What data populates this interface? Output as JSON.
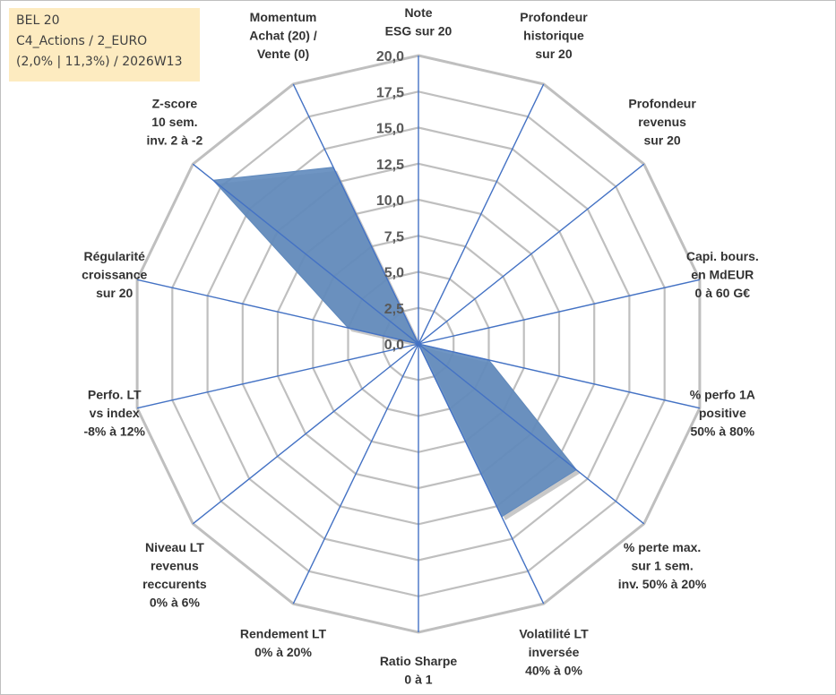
{
  "info_box": {
    "line1": "BEL 20",
    "line2": "C4_Actions / 2_EURO",
    "line3": "(2,0% | 11,3%) / 2026W13"
  },
  "chart_data": {
    "type": "radar",
    "title": "",
    "range": [
      0,
      20
    ],
    "ticks": [
      "0,0",
      "2,5",
      "5,0",
      "7,5",
      "10,0",
      "12,5",
      "15,0",
      "17,5",
      "20,0"
    ],
    "axes": [
      {
        "label": [
          "Note",
          "ESG sur 20"
        ],
        "value": 0
      },
      {
        "label": [
          "Profondeur",
          "historique",
          "sur 20"
        ],
        "value": 0
      },
      {
        "label": [
          "Profondeur",
          "revenus",
          "sur 20"
        ],
        "value": 0
      },
      {
        "label": [
          "Capi. bours.",
          "en MdEUR",
          "0 à 60 G€"
        ],
        "value": 0
      },
      {
        "label": [
          "% perfo 1A",
          "positive",
          "50% à 80%"
        ],
        "value": 5
      },
      {
        "label": [
          "% perte max.",
          "sur 1 sem.",
          "inv. 50% à 20%"
        ],
        "value": 14
      },
      {
        "label": [
          "Volatilité LT",
          "inversée",
          "40% à 0%"
        ],
        "value": 13.3
      },
      {
        "label": [
          "Ratio Sharpe",
          "0 à 1"
        ],
        "value": 0
      },
      {
        "label": [
          "Rendement LT",
          "0% à 20%"
        ],
        "value": 0
      },
      {
        "label": [
          "Niveau LT",
          "revenus",
          "reccurents",
          "0% à 6%"
        ],
        "value": 0
      },
      {
        "label": [
          "Perfo. LT",
          "vs index",
          "-8% à 12%"
        ],
        "value": 0
      },
      {
        "label": [
          "Régularité",
          "croissance",
          "sur 20"
        ],
        "value": 5
      },
      {
        "label": [
          "Z-score",
          "10 sem.",
          "inv. 2 à -2"
        ],
        "value": 18.2
      },
      {
        "label": [
          "Momentum",
          "Achat (20) /",
          "Vente (0)"
        ],
        "value": 13.6
      }
    ],
    "colors": {
      "grid": "#bfbfbf",
      "spoke": "#4472c4",
      "fill": "#5f89bd",
      "shadow": "#9a9a9a"
    }
  }
}
